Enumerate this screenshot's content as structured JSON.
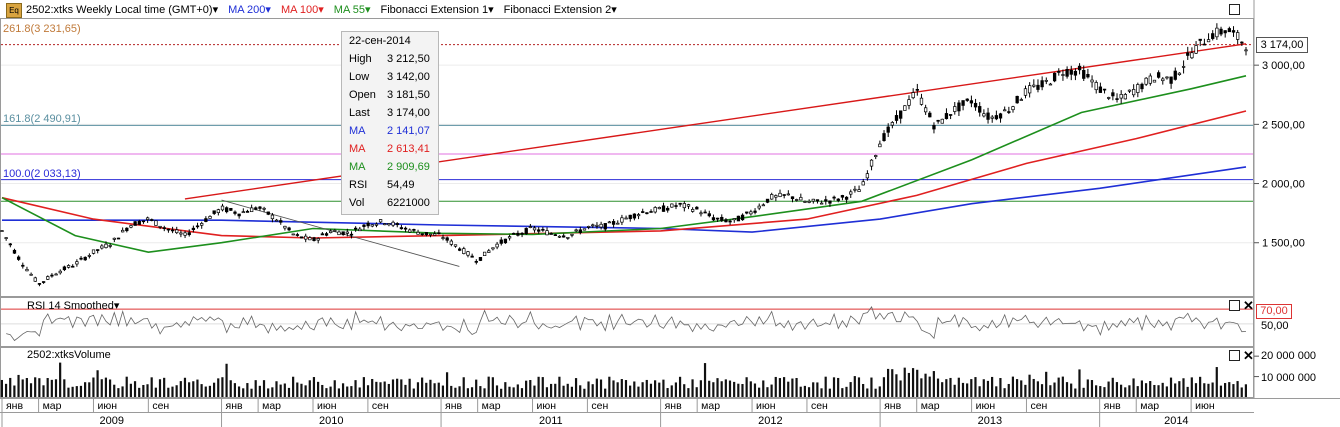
{
  "header": {
    "symbol_badge": "Eq",
    "title": "2502:xtks Weekly Local time (GMT+0)",
    "indicators": [
      {
        "label": "MA 200",
        "color": "#1f2fd6"
      },
      {
        "label": "MA 100",
        "color": "#e02020"
      },
      {
        "label": "MA 55",
        "color": "#1d8f1d"
      },
      {
        "label": "Fibonacci Extension 1",
        "color": "#000000"
      },
      {
        "label": "Fibonacci Extension 2",
        "color": "#000000"
      }
    ]
  },
  "fib_labels": [
    {
      "text": "261.8(3 231,65)",
      "value": 3231.65,
      "color": "#c07a3a"
    },
    {
      "text": "161.8(2 490,91)",
      "value": 2490.91,
      "color": "#5a8fa0"
    },
    {
      "text": "100.0(2 033,13)",
      "value": 2033.13,
      "color": "#2b2bd8"
    }
  ],
  "info_box": {
    "date": "22-сен-2014",
    "rows": [
      {
        "key": "High",
        "value": "3 212,50",
        "color": "#000000"
      },
      {
        "key": "Low",
        "value": "3 142,00",
        "color": "#000000"
      },
      {
        "key": "Open",
        "value": "3 181,50",
        "color": "#000000"
      },
      {
        "key": "Last",
        "value": "3 174,00",
        "color": "#000000"
      },
      {
        "key": "MA",
        "value": "2 141,07",
        "color": "#1f2fd6"
      },
      {
        "key": "MA",
        "value": "2 613,41",
        "color": "#e02020"
      },
      {
        "key": "MA",
        "value": "2 909,69",
        "color": "#1d8f1d"
      },
      {
        "key": "RSI",
        "value": "54,49",
        "color": "#000000"
      },
      {
        "key": "Vol",
        "value": "6221000",
        "color": "#000000"
      }
    ]
  },
  "last_price_label": "3 174,00",
  "rsi_panel": {
    "title": "RSI 14 Smoothed",
    "level_label": "70,00",
    "tick_label": "50,00"
  },
  "volume_panel": {
    "title": "2502:xtksVolume",
    "tick_labels": [
      "20 000 000",
      "10 000 000"
    ]
  },
  "x_axis": {
    "months": [
      "янв",
      "мар",
      "июн",
      "сен",
      "янв",
      "мар",
      "июн",
      "сен",
      "янв",
      "мар",
      "июн",
      "сен",
      "янв",
      "мар",
      "июн",
      "сен",
      "янв",
      "мар",
      "июн",
      "сен",
      "янв",
      "мар",
      "июн"
    ],
    "years": [
      "2009",
      "2010",
      "2011",
      "2012",
      "2013",
      "2014"
    ]
  },
  "chart_data": {
    "type": "candlestick",
    "period": "weekly",
    "y_axis_ticks": [
      "3 000,00",
      "2 500,00",
      "2 000,00",
      "1 500,00"
    ],
    "y_ticks_values": [
      3000,
      2500,
      2000,
      1500
    ],
    "ylim": [
      1050,
      3390
    ],
    "fib_levels": [
      {
        "level": "261.8",
        "value": 3231.65,
        "color": "#c07a3a"
      },
      {
        "level": "161.8",
        "value": 2490.91,
        "color": "#5a8fa0"
      },
      {
        "level": "100.0",
        "value": 2033.13,
        "color": "#2b2bd8"
      }
    ],
    "horizontal_levels": [
      {
        "value": 2490.91,
        "color": "#5a8fa0"
      },
      {
        "value": 2250,
        "color": "#e070e0"
      },
      {
        "value": 2033.13,
        "color": "#2b2bd8"
      },
      {
        "value": 1850,
        "color": "#2f8f2f"
      },
      {
        "value": 3174,
        "color": "#b22222"
      }
    ],
    "price_path": [
      [
        "2009-01",
        1600
      ],
      [
        "2009-02",
        1350
      ],
      [
        "2009-03",
        1150
      ],
      [
        "2009-04",
        1250
      ],
      [
        "2009-05",
        1320
      ],
      [
        "2009-06",
        1420
      ],
      [
        "2009-07",
        1500
      ],
      [
        "2009-08",
        1650
      ],
      [
        "2009-09",
        1700
      ],
      [
        "2009-10",
        1620
      ],
      [
        "2009-11",
        1560
      ],
      [
        "2009-12",
        1680
      ],
      [
        "2010-01",
        1790
      ],
      [
        "2010-02",
        1750
      ],
      [
        "2010-03",
        1800
      ],
      [
        "2010-04",
        1700
      ],
      [
        "2010-05",
        1560
      ],
      [
        "2010-06",
        1520
      ],
      [
        "2010-07",
        1600
      ],
      [
        "2010-08",
        1580
      ],
      [
        "2010-09",
        1660
      ],
      [
        "2010-10",
        1680
      ],
      [
        "2010-11",
        1620
      ],
      [
        "2010-12",
        1580
      ],
      [
        "2011-01",
        1560
      ],
      [
        "2011-03",
        1350
      ],
      [
        "2011-04",
        1480
      ],
      [
        "2011-05",
        1560
      ],
      [
        "2011-06",
        1620
      ],
      [
        "2011-07",
        1580
      ],
      [
        "2011-08",
        1560
      ],
      [
        "2011-09",
        1630
      ],
      [
        "2011-10",
        1640
      ],
      [
        "2011-11",
        1700
      ],
      [
        "2011-12",
        1760
      ],
      [
        "2012-01",
        1780
      ],
      [
        "2012-02",
        1820
      ],
      [
        "2012-03",
        1780
      ],
      [
        "2012-04",
        1700
      ],
      [
        "2012-05",
        1680
      ],
      [
        "2012-06",
        1760
      ],
      [
        "2012-07",
        1880
      ],
      [
        "2012-08",
        1900
      ],
      [
        "2012-09",
        1840
      ],
      [
        "2012-10",
        1850
      ],
      [
        "2012-11",
        1880
      ],
      [
        "2012-12",
        1960
      ],
      [
        "2013-01",
        2350
      ],
      [
        "2013-02",
        2560
      ],
      [
        "2013-03",
        2780
      ],
      [
        "2013-04",
        2480
      ],
      [
        "2013-05",
        2620
      ],
      [
        "2013-06",
        2700
      ],
      [
        "2013-07",
        2550
      ],
      [
        "2013-08",
        2620
      ],
      [
        "2013-09",
        2780
      ],
      [
        "2013-10",
        2840
      ],
      [
        "2013-11",
        2950
      ],
      [
        "2013-12",
        2950
      ],
      [
        "2014-01",
        2800
      ],
      [
        "2014-02",
        2700
      ],
      [
        "2014-03",
        2800
      ],
      [
        "2014-04",
        2900
      ],
      [
        "2014-05",
        2880
      ],
      [
        "2014-06",
        3100
      ],
      [
        "2014-07",
        3250
      ],
      [
        "2014-08",
        3300
      ],
      [
        "2014-09",
        3174
      ]
    ],
    "ma_series": [
      {
        "label": "MA 200",
        "color": "#1f2fd6",
        "points": [
          [
            "2009-01",
            1690
          ],
          [
            "2010-01",
            1690
          ],
          [
            "2011-01",
            1650
          ],
          [
            "2012-01",
            1620
          ],
          [
            "2012-06",
            1590
          ],
          [
            "2013-01",
            1700
          ],
          [
            "2013-06",
            1830
          ],
          [
            "2014-01",
            1960
          ],
          [
            "2014-09",
            2141
          ]
        ]
      },
      {
        "label": "MA 100",
        "color": "#e02020",
        "points": [
          [
            "2009-01",
            1880
          ],
          [
            "2009-06",
            1700
          ],
          [
            "2010-01",
            1560
          ],
          [
            "2010-06",
            1540
          ],
          [
            "2011-01",
            1560
          ],
          [
            "2012-01",
            1600
          ],
          [
            "2012-09",
            1700
          ],
          [
            "2013-03",
            1900
          ],
          [
            "2013-09",
            2170
          ],
          [
            "2014-03",
            2380
          ],
          [
            "2014-09",
            2613
          ]
        ]
      },
      {
        "label": "MA 55",
        "color": "#1d8f1d",
        "points": [
          [
            "2009-01",
            1880
          ],
          [
            "2009-05",
            1560
          ],
          [
            "2009-09",
            1420
          ],
          [
            "2010-01",
            1500
          ],
          [
            "2010-06",
            1620
          ],
          [
            "2011-01",
            1580
          ],
          [
            "2011-06",
            1570
          ],
          [
            "2012-01",
            1620
          ],
          [
            "2012-06",
            1720
          ],
          [
            "2012-12",
            1850
          ],
          [
            "2013-06",
            2200
          ],
          [
            "2013-12",
            2600
          ],
          [
            "2014-06",
            2800
          ],
          [
            "2014-09",
            2910
          ]
        ]
      }
    ],
    "trend_lines": [
      {
        "from": [
          "2009-11",
          1870
        ],
        "to": [
          "2014-09",
          3180
        ],
        "color": "#d81818"
      },
      {
        "from": [
          "2010-01",
          1860
        ],
        "to": [
          "2011-02",
          1300
        ],
        "color": "#555555"
      }
    ],
    "rsi": {
      "name": "RSI 14 Smoothed",
      "level": 70,
      "last": 54.49
    },
    "volume": {
      "name": "2502:xtksVolume",
      "last": 6221000,
      "ylim": [
        0,
        24000000
      ]
    }
  }
}
